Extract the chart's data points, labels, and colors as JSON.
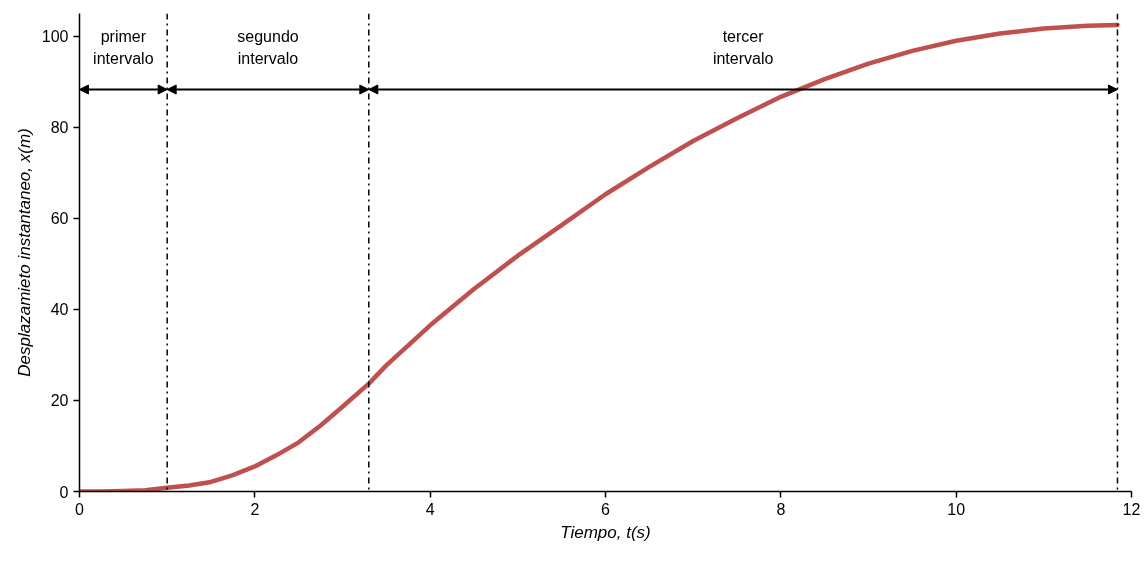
{
  "chart_data": {
    "type": "line",
    "xlabel": "Tiempo, t(s)",
    "ylabel": "Desplazamieto instantaneo, x(m)",
    "xlim": [
      0,
      12
    ],
    "xticks": [
      0,
      2,
      4,
      6,
      8,
      10,
      12
    ],
    "ylim": [
      0,
      105
    ],
    "yticks": [
      0,
      20,
      40,
      60,
      80,
      100
    ],
    "series": [
      {
        "color": "#c0504d",
        "x": [
          0,
          0.25,
          0.5,
          0.75,
          1,
          1.25,
          1.5,
          1.75,
          2,
          2.25,
          2.5,
          2.75,
          3,
          3.3,
          3.5,
          4,
          4.5,
          5,
          5.5,
          6,
          6.5,
          7,
          7.5,
          8,
          8.5,
          9,
          9.5,
          10,
          10.5,
          11,
          11.5,
          11.84
        ],
        "values": [
          0,
          0,
          0.1,
          0.3,
          0.8,
          1.3,
          2.1,
          3.6,
          5.5,
          8,
          10.8,
          14.5,
          18.6,
          23.7,
          27.7,
          36.5,
          44.5,
          51.8,
          58.5,
          65.3,
          71.3,
          77,
          82,
          86.7,
          90.6,
          94,
          96.8,
          99,
          100.6,
          101.7,
          102.3,
          102.5
        ]
      }
    ],
    "ref_lines": [
      {
        "axis": "x",
        "value": 1,
        "line_style": "dashdot",
        "color": "#000000"
      },
      {
        "axis": "x",
        "value": 3.3,
        "line_style": "dashdot",
        "color": "#000000"
      },
      {
        "axis": "x",
        "value": 11.84,
        "line_style": "dashdot",
        "color": "#000000"
      }
    ],
    "annotations": [
      "primer\nintervalo",
      "segundo\nintervalo",
      "tercer\nintervalo"
    ]
  }
}
